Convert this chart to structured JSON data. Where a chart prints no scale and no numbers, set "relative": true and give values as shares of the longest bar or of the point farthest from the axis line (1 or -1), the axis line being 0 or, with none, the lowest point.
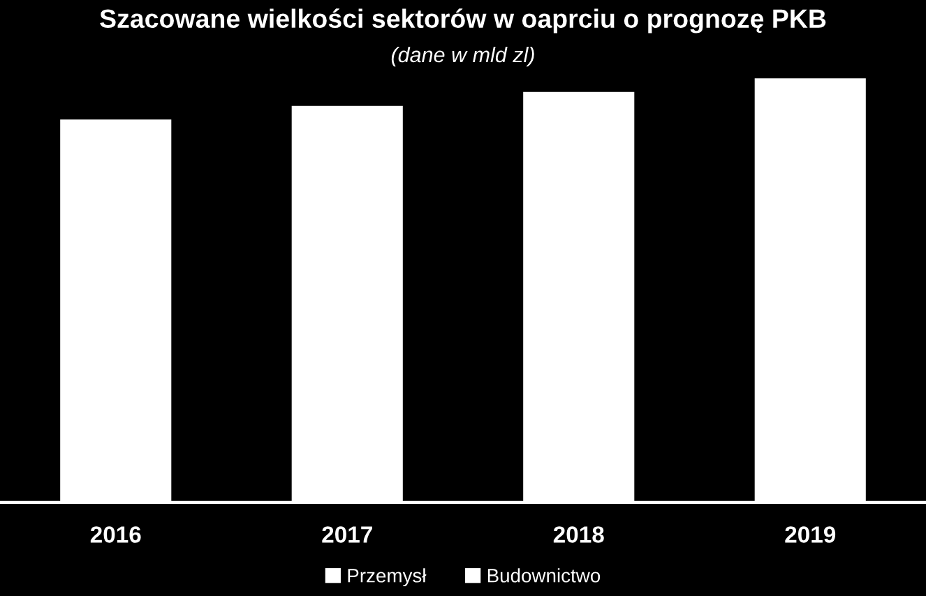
{
  "chart_data": {
    "type": "bar",
    "title": "Szacowane wielkości sektorów w oaprciu o prognozę PKB",
    "subtitle": "(dane w mld zl)",
    "categories": [
      "2016",
      "2017",
      "2018",
      "2019"
    ],
    "relative": true,
    "legend": "bottom",
    "grid": false,
    "series": [
      {
        "name": "Przemysł",
        "color": "#ffffff",
        "values": [
          0.903,
          0.935,
          0.968,
          1.0
        ]
      },
      {
        "name": "Budownictwo",
        "color": "#ffffff",
        "values": [
          null,
          null,
          null,
          null
        ]
      }
    ]
  }
}
